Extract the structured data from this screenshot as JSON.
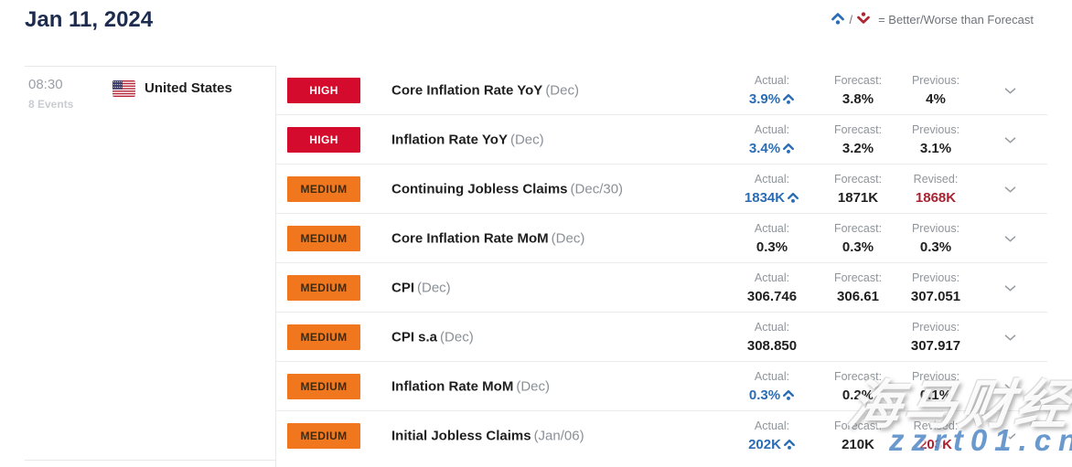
{
  "header": {
    "date": "Jan 11, 2024",
    "legend": {
      "separator": "/",
      "text": "= Better/Worse than Forecast"
    }
  },
  "group": {
    "time": "08:30",
    "events_count": "8 Events",
    "country": "United States"
  },
  "impact_labels": {
    "high": "HIGH",
    "medium": "MEDIUM"
  },
  "icons": {
    "better": "chevron-up-dot",
    "worse": "chevron-down-dot",
    "expand": "chevron-down",
    "flag": "us-flag"
  },
  "colors": {
    "high_badge": "#d50b2d",
    "medium_badge": "#f0771e",
    "better_blue": "#2a6db5",
    "worse_red": "#b02532",
    "revised_red": "#aa2231"
  },
  "events": [
    {
      "impact": "high",
      "name": "Core Inflation Rate YoY",
      "period": "(Dec)",
      "actual": {
        "label": "Actual:",
        "value": "3.9%",
        "better": true
      },
      "forecast": {
        "label": "Forecast:",
        "value": "3.8%"
      },
      "previous": {
        "label": "Previous:",
        "value": "4%"
      }
    },
    {
      "impact": "high",
      "name": "Inflation Rate YoY",
      "period": "(Dec)",
      "actual": {
        "label": "Actual:",
        "value": "3.4%",
        "better": true
      },
      "forecast": {
        "label": "Forecast:",
        "value": "3.2%"
      },
      "previous": {
        "label": "Previous:",
        "value": "3.1%"
      }
    },
    {
      "impact": "medium",
      "name": "Continuing Jobless Claims",
      "period": "(Dec/30)",
      "actual": {
        "label": "Actual:",
        "value": "1834K",
        "better": true
      },
      "forecast": {
        "label": "Forecast:",
        "value": "1871K"
      },
      "previous": {
        "label": "Revised:",
        "value": "1868K",
        "revised": true
      }
    },
    {
      "impact": "medium",
      "name": "Core Inflation Rate MoM",
      "period": "(Dec)",
      "actual": {
        "label": "Actual:",
        "value": "0.3%"
      },
      "forecast": {
        "label": "Forecast:",
        "value": "0.3%"
      },
      "previous": {
        "label": "Previous:",
        "value": "0.3%"
      }
    },
    {
      "impact": "medium",
      "name": "CPI",
      "period": "(Dec)",
      "actual": {
        "label": "Actual:",
        "value": "306.746"
      },
      "forecast": {
        "label": "Forecast:",
        "value": "306.61"
      },
      "previous": {
        "label": "Previous:",
        "value": "307.051"
      }
    },
    {
      "impact": "medium",
      "name": "CPI s.a",
      "period": "(Dec)",
      "actual": {
        "label": "Actual:",
        "value": "308.850"
      },
      "forecast": null,
      "previous": {
        "label": "Previous:",
        "value": "307.917"
      }
    },
    {
      "impact": "medium",
      "name": "Inflation Rate MoM",
      "period": "(Dec)",
      "actual": {
        "label": "Actual:",
        "value": "0.3%",
        "better": true
      },
      "forecast": {
        "label": "Forecast:",
        "value": "0.2%"
      },
      "previous": {
        "label": "Previous:",
        "value": "0.1%"
      }
    },
    {
      "impact": "medium",
      "name": "Initial Jobless Claims",
      "period": "(Jan/06)",
      "actual": {
        "label": "Actual:",
        "value": "202K",
        "better": true
      },
      "forecast": {
        "label": "Forecast:",
        "value": "210K"
      },
      "previous": {
        "label": "Revised:",
        "value": "203K",
        "revised": true
      }
    }
  ],
  "watermark": {
    "line1": "海马财经",
    "line2": "zzrt01.cn"
  }
}
